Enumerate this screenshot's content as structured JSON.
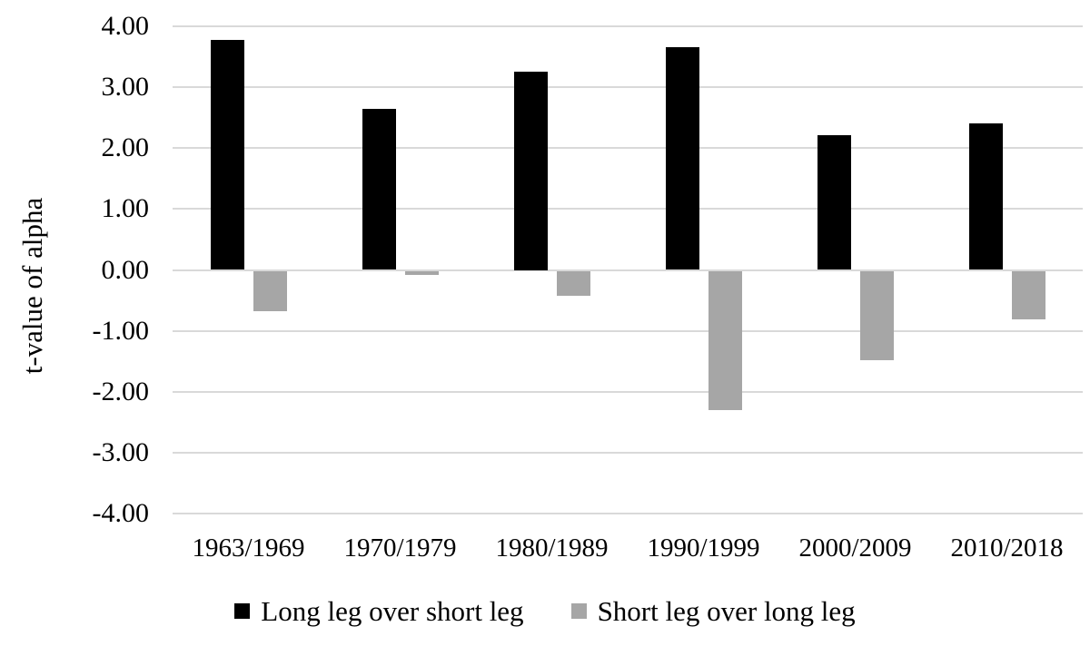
{
  "chart_data": {
    "type": "bar",
    "title": "",
    "xlabel": "",
    "ylabel": "t-value of alpha",
    "ylim": [
      -4,
      4
    ],
    "grid": true,
    "grid_color": "#d9d9d9",
    "background": "#ffffff",
    "legend_position": "bottom",
    "yticks": [
      {
        "label": "4.00",
        "value": 4
      },
      {
        "label": "3.00",
        "value": 3
      },
      {
        "label": "2.00",
        "value": 2
      },
      {
        "label": "1.00",
        "value": 1
      },
      {
        "label": "0.00",
        "value": 0
      },
      {
        "label": "-1.00",
        "value": -1
      },
      {
        "label": "-2.00",
        "value": -2
      },
      {
        "label": "-3.00",
        "value": -3
      },
      {
        "label": "-4.00",
        "value": -4
      }
    ],
    "categories": [
      "1963/1969",
      "1970/1979",
      "1980/1989",
      "1990/1999",
      "2000/2009",
      "2010/2018"
    ],
    "series": [
      {
        "name": "Long leg over short leg",
        "color": "#000000",
        "values": [
          3.77,
          2.65,
          3.25,
          3.65,
          2.21,
          2.4
        ]
      },
      {
        "name": "Short leg over long leg",
        "color": "#a6a6a6",
        "values": [
          -0.67,
          -0.07,
          -0.41,
          -2.28,
          -1.47,
          -0.79
        ]
      }
    ]
  }
}
